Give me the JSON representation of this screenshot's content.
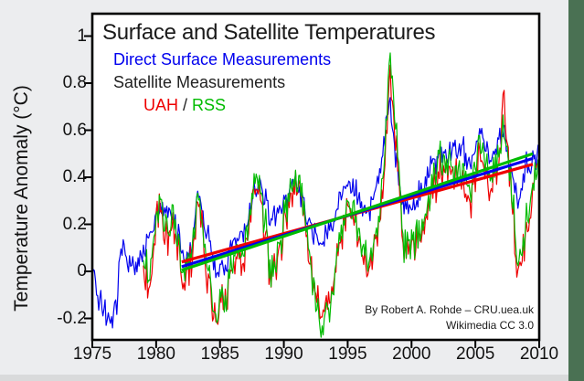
{
  "figure": {
    "attribution_line1": "By Robert A. Rohde – CRU.uea.uk",
    "attribution_line2": "Wikimedia CC 3.0"
  },
  "legend": {
    "direct_surface_label": "Direct Surface Measurements",
    "satellite_label": "Satellite Measurements",
    "uah_label": "UAH",
    "separator": "/",
    "rss_label": "RSS"
  },
  "colors": {
    "background": "#ecedef",
    "plot_background": "#ffffff",
    "frame": "#000000",
    "surface_blue": "#0000ee",
    "uah_red": "#ee0000",
    "rss_green": "#00bb00",
    "satellite_text": "#222222",
    "right_strip_green": "#4a7153",
    "bottom_strip": "#d9dadb",
    "text": "#1a1a1a"
  },
  "chart_data": {
    "type": "line",
    "title": "Surface and Satellite Temperatures",
    "xlabel": "",
    "ylabel": "Temperature Anomaly (°C)",
    "xlim": [
      1975,
      2010
    ],
    "ylim": [
      -0.29,
      1.1
    ],
    "grid": false,
    "legend_position": "upper-left-inside",
    "x_tick_values": [
      1975,
      1980,
      1985,
      1990,
      1995,
      2000,
      2005,
      2010
    ],
    "x_tick_labels": [
      "1975",
      "1980",
      "1985",
      "1990",
      "1995",
      "2000",
      "2005",
      "2010"
    ],
    "y_tick_values": [
      1,
      0.8,
      0.6,
      0.4,
      0.2,
      0,
      -0.2
    ],
    "y_tick_labels": [
      "1",
      "0.8",
      "0.6",
      "0.4",
      "0.2",
      "0",
      "-0.2"
    ],
    "series": [
      {
        "name": "Direct Surface Measurements",
        "color": "#0000ee",
        "start": 1975.0,
        "end": 2009.92,
        "anchors": [
          [
            1975.0,
            0.05
          ],
          [
            1975.4,
            -0.12
          ],
          [
            1976.0,
            -0.15
          ],
          [
            1976.4,
            -0.27
          ],
          [
            1976.9,
            -0.12
          ],
          [
            1977.3,
            0.1
          ],
          [
            1978.0,
            0.05
          ],
          [
            1978.6,
            0.02
          ],
          [
            1979.2,
            0.1
          ],
          [
            1979.8,
            0.18
          ],
          [
            1980.3,
            0.25
          ],
          [
            1981.0,
            0.28
          ],
          [
            1981.6,
            0.18
          ],
          [
            1982.2,
            0.05
          ],
          [
            1982.8,
            0.1
          ],
          [
            1983.2,
            0.32
          ],
          [
            1983.9,
            0.2
          ],
          [
            1984.6,
            0.02
          ],
          [
            1985.3,
            0.0
          ],
          [
            1986.1,
            0.1
          ],
          [
            1986.9,
            0.18
          ],
          [
            1987.6,
            0.32
          ],
          [
            1988.2,
            0.35
          ],
          [
            1989.0,
            0.2
          ],
          [
            1989.8,
            0.25
          ],
          [
            1990.5,
            0.38
          ],
          [
            1991.2,
            0.35
          ],
          [
            1992.1,
            0.2
          ],
          [
            1992.8,
            0.1
          ],
          [
            1993.5,
            0.18
          ],
          [
            1994.3,
            0.28
          ],
          [
            1995.1,
            0.38
          ],
          [
            1995.9,
            0.3
          ],
          [
            1996.6,
            0.25
          ],
          [
            1997.3,
            0.38
          ],
          [
            1997.9,
            0.55
          ],
          [
            1998.3,
            0.75
          ],
          [
            1998.8,
            0.45
          ],
          [
            1999.4,
            0.3
          ],
          [
            2000.1,
            0.28
          ],
          [
            2000.9,
            0.35
          ],
          [
            2001.6,
            0.45
          ],
          [
            2002.3,
            0.52
          ],
          [
            2003.1,
            0.5
          ],
          [
            2003.9,
            0.55
          ],
          [
            2004.6,
            0.45
          ],
          [
            2005.3,
            0.58
          ],
          [
            2006.1,
            0.5
          ],
          [
            2006.9,
            0.55
          ],
          [
            2007.3,
            0.6
          ],
          [
            2007.9,
            0.42
          ],
          [
            2008.4,
            0.3
          ],
          [
            2009.0,
            0.45
          ],
          [
            2009.9,
            0.5
          ]
        ]
      },
      {
        "name": "UAH",
        "color": "#ee0000",
        "start": 1979.0,
        "end": 2009.92,
        "anchors": [
          [
            1979.0,
            0.02
          ],
          [
            1979.5,
            -0.1
          ],
          [
            1980.2,
            0.28
          ],
          [
            1980.9,
            0.12
          ],
          [
            1981.4,
            0.2
          ],
          [
            1982.1,
            -0.05
          ],
          [
            1982.8,
            0.02
          ],
          [
            1983.2,
            0.3
          ],
          [
            1983.9,
            0.05
          ],
          [
            1984.5,
            -0.18
          ],
          [
            1985.3,
            -0.12
          ],
          [
            1986.1,
            0.0
          ],
          [
            1986.9,
            0.08
          ],
          [
            1987.6,
            0.32
          ],
          [
            1988.2,
            0.32
          ],
          [
            1989.0,
            -0.05
          ],
          [
            1989.8,
            0.12
          ],
          [
            1990.5,
            0.32
          ],
          [
            1991.3,
            0.38
          ],
          [
            1992.2,
            0.0
          ],
          [
            1992.9,
            -0.2
          ],
          [
            1993.6,
            -0.12
          ],
          [
            1994.3,
            0.08
          ],
          [
            1995.1,
            0.3
          ],
          [
            1995.9,
            0.1
          ],
          [
            1996.6,
            0.05
          ],
          [
            1997.3,
            0.12
          ],
          [
            1997.9,
            0.4
          ],
          [
            1998.3,
            0.88
          ],
          [
            1998.8,
            0.55
          ],
          [
            1999.4,
            0.1
          ],
          [
            2000.1,
            0.1
          ],
          [
            2000.9,
            0.18
          ],
          [
            2001.6,
            0.32
          ],
          [
            2002.3,
            0.45
          ],
          [
            2003.1,
            0.42
          ],
          [
            2003.9,
            0.4
          ],
          [
            2004.6,
            0.3
          ],
          [
            2005.3,
            0.5
          ],
          [
            2006.1,
            0.35
          ],
          [
            2006.9,
            0.45
          ],
          [
            2007.2,
            0.75
          ],
          [
            2007.8,
            0.35
          ],
          [
            2008.3,
            0.0
          ],
          [
            2008.9,
            0.15
          ],
          [
            2009.4,
            0.3
          ],
          [
            2009.9,
            0.5
          ]
        ]
      },
      {
        "name": "RSS",
        "color": "#00bb00",
        "start": 1979.0,
        "end": 2009.92,
        "anchors": [
          [
            1979.0,
            0.05
          ],
          [
            1979.5,
            -0.05
          ],
          [
            1980.2,
            0.3
          ],
          [
            1980.9,
            0.15
          ],
          [
            1981.4,
            0.22
          ],
          [
            1982.1,
            -0.02
          ],
          [
            1982.8,
            0.05
          ],
          [
            1983.2,
            0.32
          ],
          [
            1983.9,
            0.08
          ],
          [
            1984.5,
            -0.15
          ],
          [
            1985.3,
            -0.1
          ],
          [
            1986.1,
            0.02
          ],
          [
            1986.9,
            0.1
          ],
          [
            1987.6,
            0.35
          ],
          [
            1988.2,
            0.35
          ],
          [
            1989.0,
            -0.02
          ],
          [
            1989.8,
            0.15
          ],
          [
            1990.5,
            0.35
          ],
          [
            1991.3,
            0.4
          ],
          [
            1992.2,
            0.0
          ],
          [
            1992.9,
            -0.25
          ],
          [
            1993.6,
            -0.15
          ],
          [
            1994.3,
            0.1
          ],
          [
            1995.1,
            0.32
          ],
          [
            1995.9,
            0.15
          ],
          [
            1996.6,
            0.08
          ],
          [
            1997.3,
            0.15
          ],
          [
            1997.9,
            0.45
          ],
          [
            1998.3,
            0.97
          ],
          [
            1998.8,
            0.6
          ],
          [
            1999.4,
            0.12
          ],
          [
            2000.1,
            0.12
          ],
          [
            2000.9,
            0.2
          ],
          [
            2001.6,
            0.35
          ],
          [
            2002.3,
            0.5
          ],
          [
            2003.1,
            0.45
          ],
          [
            2003.9,
            0.45
          ],
          [
            2004.6,
            0.35
          ],
          [
            2005.3,
            0.55
          ],
          [
            2006.1,
            0.4
          ],
          [
            2006.9,
            0.5
          ],
          [
            2007.2,
            0.6
          ],
          [
            2007.8,
            0.4
          ],
          [
            2008.3,
            0.05
          ],
          [
            2008.9,
            0.2
          ],
          [
            2009.4,
            0.35
          ],
          [
            2009.9,
            0.45
          ]
        ]
      }
    ],
    "trend_lines": [
      {
        "name": "UAH trend",
        "color": "#ee0000",
        "points": [
          [
            1982.0,
            0.04
          ],
          [
            2009.5,
            0.455
          ]
        ]
      },
      {
        "name": "Direct Surface trend",
        "color": "#0000ee",
        "points": [
          [
            1982.0,
            0.02
          ],
          [
            2009.5,
            0.48
          ]
        ]
      },
      {
        "name": "RSS trend",
        "color": "#00bb00",
        "points": [
          [
            1982.0,
            0.005
          ],
          [
            2009.5,
            0.5
          ]
        ]
      }
    ],
    "noise": {
      "seed": 7,
      "shared_satellite_amp": 0.065,
      "surface_shared_amp": 0.03,
      "surface_indep_amp": 0.045,
      "satellite_indep_amp": 0.04
    }
  }
}
